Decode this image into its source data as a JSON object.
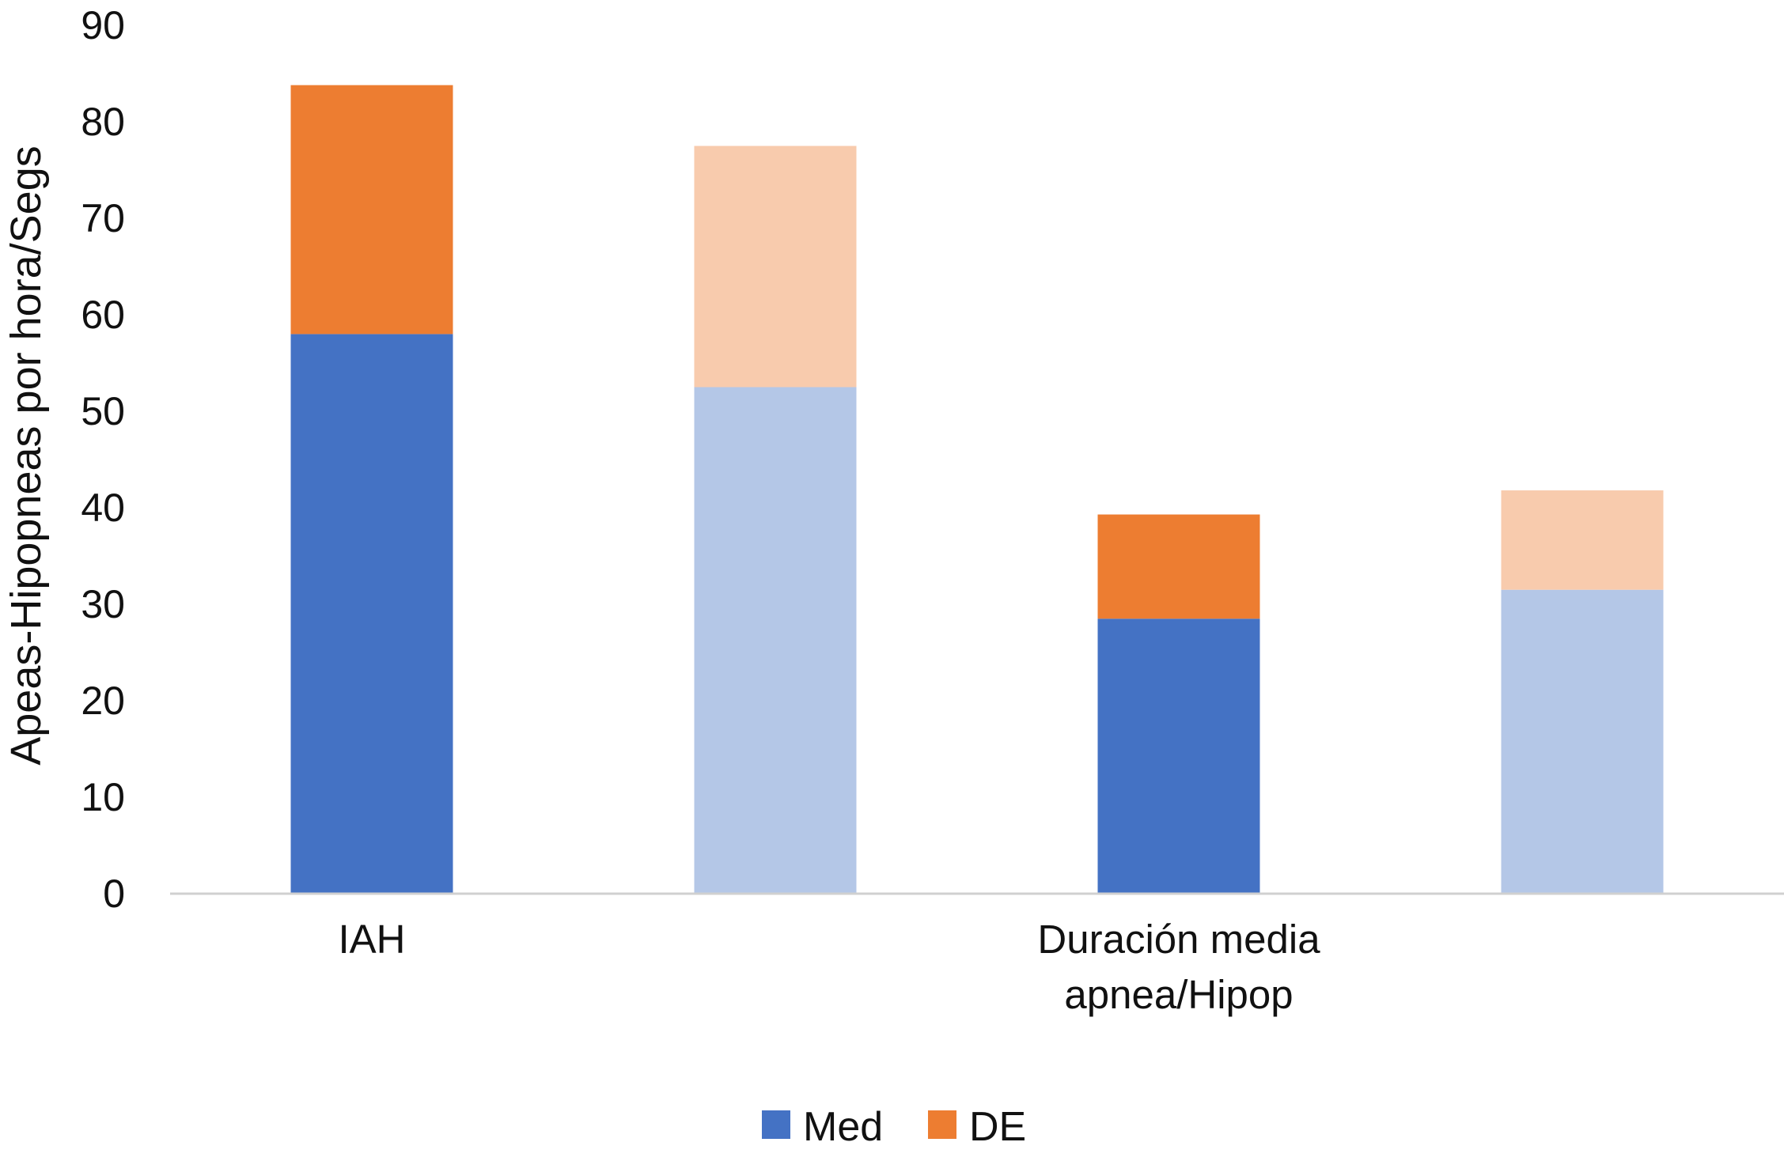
{
  "chart_data": {
    "type": "bar",
    "stacked": true,
    "ylabel": "Apeas-Hipopneas por hora/Segs",
    "xlabel": "",
    "ylim": [
      0,
      90
    ],
    "yticks": [
      0,
      10,
      20,
      30,
      40,
      50,
      60,
      70,
      80,
      90
    ],
    "grid": false,
    "legend_position": "bottom",
    "category_labels": [
      "IAH",
      "Duración media apnea/Hipop"
    ],
    "bars": [
      {
        "category": "IAH",
        "Med": 58,
        "DE": 25.8,
        "style": "solid"
      },
      {
        "category": "IAH",
        "Med": 52.5,
        "DE": 25,
        "style": "light"
      },
      {
        "category": "Duración media apnea/Hipop",
        "Med": 28.5,
        "DE": 10.8,
        "style": "solid"
      },
      {
        "category": "Duración media apnea/Hipop",
        "Med": 31.5,
        "DE": 10.3,
        "style": "light"
      }
    ],
    "series": [
      {
        "name": "Med",
        "color": "#4472C4",
        "light_color": "#B4C7E7"
      },
      {
        "name": "DE",
        "color": "#ED7D31",
        "light_color": "#F8CBAD"
      }
    ]
  }
}
